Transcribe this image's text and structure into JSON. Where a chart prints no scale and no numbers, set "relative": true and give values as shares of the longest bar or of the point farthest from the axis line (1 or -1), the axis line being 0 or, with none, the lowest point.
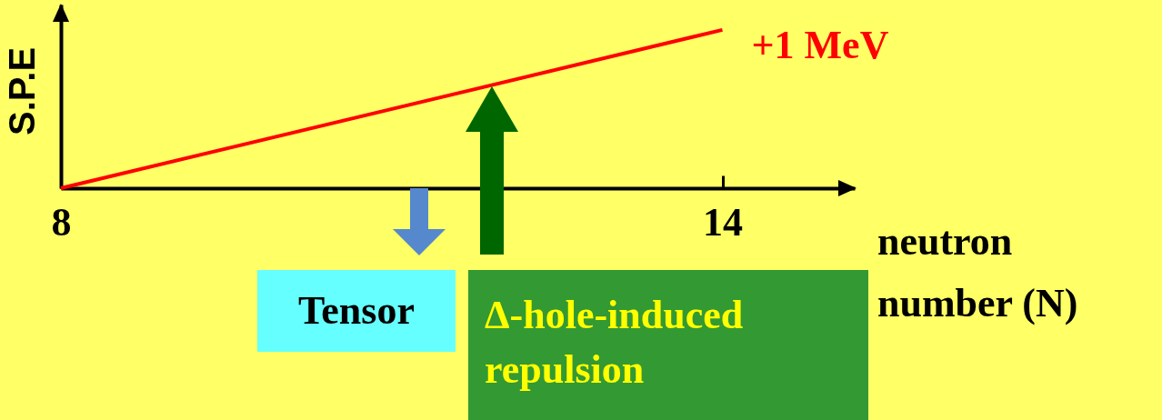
{
  "chart_data": {
    "type": "line",
    "ylabel": "S.P.E",
    "xlabel": "neutron number (N)",
    "x": [
      8,
      14
    ],
    "series": [
      {
        "color": "#ff0000",
        "values": [
          0,
          1
        ]
      }
    ],
    "relative": true,
    "xlim": [
      8,
      15.2
    ],
    "xticks": [
      8,
      14
    ],
    "annotations": [
      "+1 MeV",
      "Tensor",
      "Δ-hole-induced repulsion"
    ]
  }
}
